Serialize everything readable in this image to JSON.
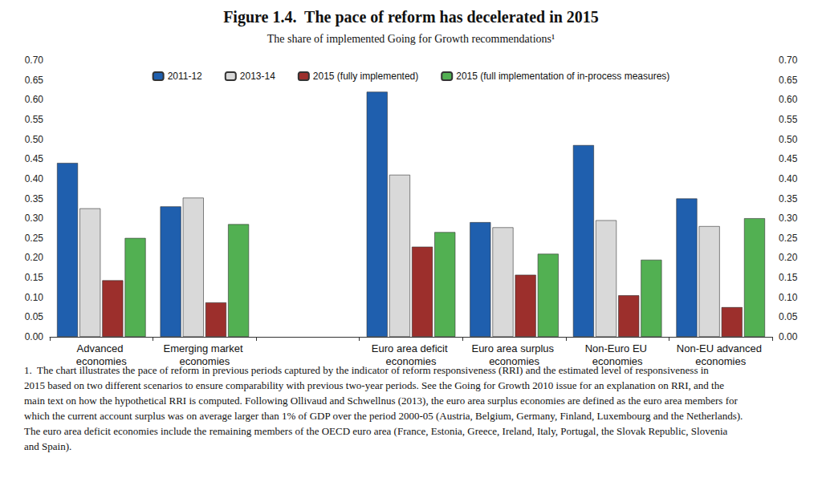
{
  "chart_data": {
    "type": "bar",
    "title": "Figure 1.4.  The pace of reform has decelerated in 2015",
    "subtitle": "The share of implemented Going for Growth recommendations¹",
    "notes": "1.  The chart illustrates the pace of reform in previous periods captured by the indicator of reform responsiveness (RRI) and the estimated level of responsiveness in 2015 based on two different scenarios to ensure comparability with previous two-year periods. See the Going for Growth 2010 issue for an explanation on RRI, and the main text on how the hypothetical RRI is computed. Following Ollivaud and Schwellnus (2013), the euro area surplus economies are defined as the euro area members for which the current account surplus was on average larger than 1% of GDP over the period 2000-05 (Austria, Belgium, Germany, Finland, Luxembourg and the Netherlands). The euro area deficit economies include the remaining members of the OECD euro area (France, Estonia, Greece, Ireland, Italy, Portugal, the Slovak Republic, Slovenia and Spain).",
    "categories": [
      "Advanced economies",
      "Emerging market economies",
      null,
      "Euro area deficit economies",
      "Euro area surplus economies",
      "Non-Euro EU economies",
      "Non-EU advanced economies"
    ],
    "series": [
      {
        "name": "2011-12",
        "color": "#1f5fae",
        "values": [
          0.44,
          0.33,
          null,
          0.62,
          0.29,
          0.485,
          0.35
        ]
      },
      {
        "name": "2013-14",
        "color": "#d9d9d9",
        "values": [
          0.325,
          0.352,
          null,
          0.41,
          0.277,
          0.295,
          0.28
        ]
      },
      {
        "name": "2015 (fully implemented)",
        "color": "#9c2f2c",
        "values": [
          0.143,
          0.087,
          null,
          0.228,
          0.157,
          0.105,
          0.075
        ]
      },
      {
        "name": "2015 (full implementation of in-process measures)",
        "color": "#52b052",
        "values": [
          0.25,
          0.285,
          null,
          0.265,
          0.21,
          0.195,
          0.3
        ]
      }
    ],
    "ylim": [
      0,
      0.7
    ],
    "yticks": [
      {
        "value": 0,
        "label": "0.00"
      },
      {
        "value": 0.05,
        "label": "0.05"
      },
      {
        "value": 0.1,
        "label": "0.10"
      },
      {
        "value": 0.15,
        "label": "0.15"
      },
      {
        "value": 0.2,
        "label": "0.20"
      },
      {
        "value": 0.25,
        "label": "0.25"
      },
      {
        "value": 0.3,
        "label": "0.30"
      },
      {
        "value": 0.35,
        "label": "0.35"
      },
      {
        "value": 0.4,
        "label": "0.40"
      },
      {
        "value": 0.45,
        "label": "0.45"
      },
      {
        "value": 0.5,
        "label": "0.50"
      },
      {
        "value": 0.55,
        "label": "0.55"
      },
      {
        "value": 0.6,
        "label": "0.60"
      },
      {
        "value": 0.65,
        "label": "0.65"
      },
      {
        "value": 0.7,
        "label": "0.70"
      }
    ],
    "y2lim": [
      0,
      0.7
    ],
    "y2ticks": [
      {
        "value": 0,
        "label": "0.00"
      },
      {
        "value": 0.05,
        "label": "0.05"
      },
      {
        "value": 0.1,
        "label": "0.10"
      },
      {
        "value": 0.15,
        "label": "0.15"
      },
      {
        "value": 0.2,
        "label": "0.20"
      },
      {
        "value": 0.25,
        "label": "0.25"
      },
      {
        "value": 0.3,
        "label": "0.30"
      },
      {
        "value": 0.35,
        "label": "0.35"
      },
      {
        "value": 0.4,
        "label": "0.40"
      },
      {
        "value": 0.45,
        "label": "0.45"
      },
      {
        "value": 0.5,
        "label": "0.50"
      },
      {
        "value": 0.55,
        "label": "0.55"
      },
      {
        "value": 0.6,
        "label": "0.60"
      },
      {
        "value": 0.65,
        "label": "0.65"
      },
      {
        "value": 0.7,
        "label": "0.70"
      }
    ],
    "grid": false,
    "legend": "top"
  }
}
